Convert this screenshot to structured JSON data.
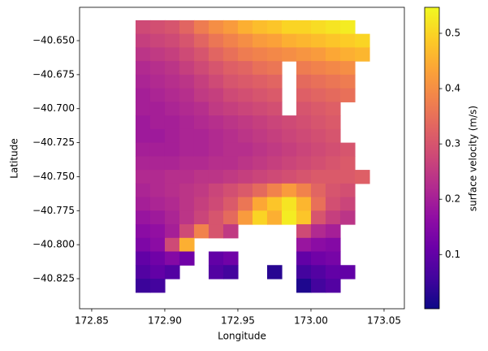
{
  "chart_data": {
    "type": "mesh",
    "xlabel": "Longitude",
    "ylabel": "Latitude",
    "colorbar_label": "surface velocity (m/s)",
    "colormap": "plasma",
    "clim": [
      0.002,
      0.547
    ],
    "cticks": [
      0.1,
      0.2,
      0.3,
      0.4,
      0.5
    ],
    "xlim": [
      172.8417,
      173.0639
    ],
    "ylim": [
      -40.8471,
      -40.6255
    ],
    "xticks": [
      172.85,
      {
        "value": 172.9,
        "label": "172.90"
      },
      172.95,
      {
        "value": 173.0,
        "label": "173.00"
      },
      173.05
    ],
    "yticks": [
      {
        "value": -40.65,
        "label": "−40.650"
      },
      {
        "value": -40.675,
        "label": "−40.675"
      },
      {
        "value": -40.7,
        "label": "−40.700"
      },
      {
        "value": -40.725,
        "label": "−40.725"
      },
      {
        "value": -40.75,
        "label": "−40.750"
      },
      {
        "value": -40.775,
        "label": "−40.775"
      },
      {
        "value": -40.8,
        "label": "−40.800"
      },
      {
        "value": -40.825,
        "label": "−40.825"
      }
    ],
    "x": [
      172.885,
      172.895,
      172.905,
      172.915,
      172.925,
      172.935,
      172.945,
      172.955,
      172.965,
      172.975,
      172.985,
      172.995,
      173.005,
      173.015,
      173.025,
      173.035
    ],
    "y": [
      -40.64,
      -40.65,
      -40.66,
      -40.67,
      -40.68,
      -40.69,
      -40.7,
      -40.71,
      -40.72,
      -40.73,
      -40.74,
      -40.75,
      -40.76,
      -40.77,
      -40.78,
      -40.79,
      -40.8,
      -40.81,
      -40.82,
      -40.83
    ],
    "values": [
      [
        0.28,
        0.29,
        0.3,
        0.33,
        0.37,
        0.4,
        0.42,
        0.45,
        0.47,
        0.48,
        0.5,
        0.5,
        0.51,
        0.52,
        0.53,
        null
      ],
      [
        0.26,
        0.27,
        0.28,
        0.3,
        0.33,
        0.36,
        0.38,
        0.4,
        0.42,
        0.43,
        0.45,
        0.46,
        0.47,
        0.48,
        0.49,
        0.5
      ],
      [
        0.24,
        0.25,
        0.26,
        0.28,
        0.3,
        0.33,
        0.35,
        0.37,
        0.38,
        0.39,
        0.4,
        0.41,
        0.42,
        0.44,
        0.45,
        0.46
      ],
      [
        0.22,
        0.23,
        0.24,
        0.26,
        0.28,
        0.3,
        0.32,
        0.33,
        0.35,
        0.36,
        null,
        0.37,
        0.38,
        0.39,
        0.4,
        null
      ],
      [
        0.21,
        0.22,
        0.23,
        0.24,
        0.26,
        0.28,
        0.3,
        0.31,
        0.32,
        0.33,
        null,
        0.34,
        0.35,
        0.36,
        0.37,
        null
      ],
      [
        0.2,
        0.21,
        0.22,
        0.23,
        0.25,
        0.26,
        0.28,
        0.29,
        0.3,
        0.31,
        null,
        0.32,
        0.33,
        0.34,
        0.35,
        null
      ],
      [
        0.2,
        0.2,
        0.21,
        0.22,
        0.23,
        0.25,
        0.26,
        0.27,
        0.28,
        0.29,
        null,
        0.3,
        0.31,
        0.32,
        null,
        null
      ],
      [
        0.19,
        0.2,
        0.2,
        0.21,
        0.22,
        0.23,
        0.24,
        0.25,
        0.26,
        0.27,
        0.28,
        0.29,
        0.3,
        0.31,
        null,
        null
      ],
      [
        0.19,
        0.19,
        0.2,
        0.21,
        0.21,
        0.22,
        0.23,
        0.24,
        0.25,
        0.26,
        0.27,
        0.28,
        0.29,
        0.3,
        null,
        null
      ],
      [
        0.2,
        0.2,
        0.2,
        0.21,
        0.21,
        0.22,
        0.23,
        0.23,
        0.24,
        0.25,
        0.26,
        0.27,
        0.28,
        0.29,
        0.3,
        null
      ],
      [
        0.21,
        0.21,
        0.21,
        0.22,
        0.22,
        0.23,
        0.23,
        0.24,
        0.25,
        0.26,
        0.27,
        0.28,
        0.29,
        0.3,
        0.31,
        null
      ],
      [
        0.22,
        0.22,
        0.23,
        0.23,
        0.24,
        0.24,
        0.25,
        0.26,
        0.27,
        0.28,
        0.29,
        0.3,
        0.31,
        0.31,
        0.31,
        0.32
      ],
      [
        0.21,
        0.22,
        0.23,
        0.24,
        0.25,
        0.27,
        0.29,
        0.31,
        0.34,
        0.38,
        0.42,
        0.38,
        0.33,
        0.3,
        0.29,
        null
      ],
      [
        0.2,
        0.21,
        0.22,
        0.24,
        0.26,
        0.28,
        0.31,
        0.36,
        0.44,
        0.48,
        0.52,
        0.46,
        0.35,
        0.29,
        0.27,
        null
      ],
      [
        0.18,
        0.19,
        0.21,
        0.24,
        0.27,
        0.3,
        0.34,
        0.42,
        0.5,
        0.45,
        0.53,
        0.48,
        0.3,
        0.26,
        0.24,
        null
      ],
      [
        0.16,
        0.17,
        0.2,
        0.28,
        0.38,
        0.3,
        0.25,
        null,
        null,
        null,
        null,
        0.28,
        0.22,
        0.2,
        null,
        null
      ],
      [
        0.14,
        0.16,
        0.28,
        0.45,
        null,
        null,
        null,
        null,
        null,
        null,
        null,
        0.18,
        0.16,
        0.15,
        null,
        null
      ],
      [
        0.1,
        0.12,
        0.15,
        0.12,
        null,
        0.1,
        0.12,
        null,
        null,
        null,
        null,
        0.1,
        0.12,
        0.13,
        null,
        null
      ],
      [
        0.08,
        0.1,
        0.08,
        null,
        null,
        0.08,
        0.06,
        null,
        null,
        0.03,
        null,
        0.06,
        0.08,
        0.1,
        0.1,
        null
      ],
      [
        0.05,
        0.06,
        null,
        null,
        null,
        null,
        null,
        null,
        null,
        null,
        null,
        0.02,
        0.06,
        0.08,
        null,
        null
      ]
    ]
  }
}
